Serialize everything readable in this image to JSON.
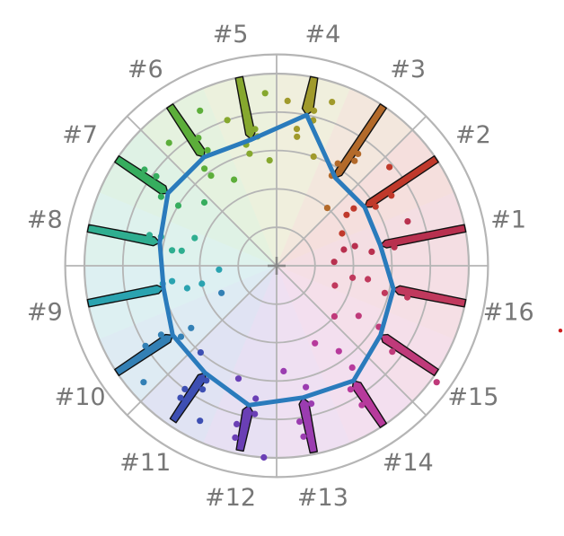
{
  "chart_data": {
    "type": "radar",
    "title": "",
    "axis_range": [
      0,
      1.1
    ],
    "grid": true,
    "ring_values": [
      0.2,
      0.4,
      0.6,
      0.8,
      1.0
    ],
    "colors": {
      "grid": "#b5b5b5",
      "median_line": "#2a7bbc",
      "outlier": "#cc1f1f",
      "label": "#777777"
    },
    "categories": [
      {
        "label": "#1",
        "color": "#b8304f"
      },
      {
        "label": "#2",
        "color": "#c0392b"
      },
      {
        "label": "#3",
        "color": "#b36a2a"
      },
      {
        "label": "#4",
        "color": "#a09a2b"
      },
      {
        "label": "#5",
        "color": "#86a82e"
      },
      {
        "label": "#6",
        "color": "#5cae3a"
      },
      {
        "label": "#7",
        "color": "#36ad5e"
      },
      {
        "label": "#8",
        "color": "#2fae90"
      },
      {
        "label": "#9",
        "color": "#2aa3b0"
      },
      {
        "label": "#10",
        "color": "#3380b5"
      },
      {
        "label": "#11",
        "color": "#3d4fb3"
      },
      {
        "label": "#12",
        "color": "#6a3fb5"
      },
      {
        "label": "#13",
        "color": "#9b3cb0"
      },
      {
        "label": "#14",
        "color": "#b73a9c"
      },
      {
        "label": "#15",
        "color": "#bf3a7a"
      },
      {
        "label": "#16",
        "color": "#c0395d"
      }
    ],
    "series": [
      {
        "kind": "median-line",
        "values": [
          0.55,
          0.55,
          0.55,
          0.8,
          0.67,
          0.68,
          0.68,
          0.62,
          0.6,
          0.65,
          0.67,
          0.74,
          0.7,
          0.72,
          0.65,
          0.62
        ]
      },
      {
        "kind": "upper-band",
        "values": [
          1.0,
          1.0,
          1.0,
          1.0,
          1.0,
          1.0,
          1.0,
          1.0,
          1.0,
          1.0,
          0.97,
          0.98,
          0.99,
          1.0,
          1.0,
          1.0
        ]
      },
      {
        "kind": "points",
        "values": [
          [
            0.3,
            0.36,
            0.42,
            0.5,
            0.62,
            0.72
          ],
          [
            0.38,
            0.45,
            0.5,
            0.6,
            0.7,
            0.78
          ],
          [
            0.4,
            0.55,
            0.62,
            0.68,
            0.72
          ],
          [
            0.6,
            0.68,
            0.72,
            0.78,
            0.83,
            0.86,
            0.9
          ],
          [
            0.55,
            0.6,
            0.65,
            0.68,
            0.72,
            0.8,
            0.9
          ],
          [
            0.5,
            0.58,
            0.63,
            0.7,
            0.78,
            0.85,
            0.9
          ],
          [
            0.5,
            0.6,
            0.7,
            0.78,
            0.85
          ],
          [
            0.45,
            0.5,
            0.55,
            0.62,
            0.68
          ],
          [
            0.3,
            0.4,
            0.48,
            0.55,
            0.6
          ],
          [
            0.32,
            0.55,
            0.62,
            0.7,
            0.8,
            0.92
          ],
          [
            0.6,
            0.7,
            0.75,
            0.8,
            0.85,
            0.9
          ],
          [
            0.62,
            0.7,
            0.78,
            0.85,
            0.92,
            1.0
          ],
          [
            0.55,
            0.65,
            0.74,
            0.82,
            0.9
          ],
          [
            0.45,
            0.55,
            0.66,
            0.75,
            0.85
          ],
          [
            0.4,
            0.5,
            0.62,
            0.75,
            1.03
          ],
          [
            0.32,
            0.4,
            0.48,
            0.58,
            0.7
          ]
        ]
      }
    ],
    "outliers": [
      {
        "category": "#16",
        "value": 1.73
      }
    ]
  }
}
